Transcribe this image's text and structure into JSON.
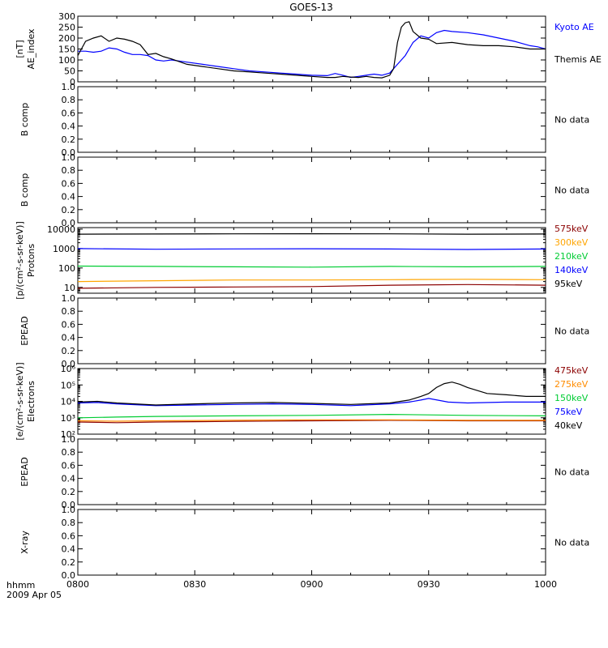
{
  "title": "GOES-13",
  "time_axis": {
    "ticks": [
      "0800",
      "0830",
      "0900",
      "0930",
      "1000"
    ],
    "left_label": "hhmm",
    "date_label": "2009 Apr 05",
    "range_minutes": [
      0,
      120
    ]
  },
  "colors": {
    "axes": "#000000",
    "kyoto": "#0000ff",
    "themis": "#000000",
    "ch_575": "#8b0000",
    "ch_300": "#ffa500",
    "ch_210": "#00cc33",
    "ch_140": "#0000ff",
    "ch_95": "#000000",
    "ch_475": "#8b0000",
    "ch_275": "#ff8c00",
    "ch_150": "#00cc33",
    "ch_75": "#0000ff",
    "ch_40": "#000000"
  },
  "chart_data": [
    {
      "type": "line",
      "panel": "ae",
      "ylabel_lines": [
        "AE_index",
        "[nT]"
      ],
      "ylim": [
        0,
        300
      ],
      "yticks": [
        0,
        50,
        100,
        150,
        200,
        250,
        300
      ],
      "series": [
        {
          "name": "Kyoto AE",
          "color_key": "kyoto",
          "x": [
            0,
            2,
            4,
            6,
            8,
            10,
            12,
            14,
            16,
            18,
            20,
            22,
            24,
            28,
            32,
            36,
            40,
            44,
            48,
            52,
            56,
            60,
            64,
            66,
            68,
            70,
            72,
            74,
            76,
            78,
            80,
            82,
            84,
            86,
            88,
            90,
            92,
            94,
            96,
            100,
            104,
            108,
            112,
            116,
            118,
            120
          ],
          "values": [
            140,
            140,
            135,
            140,
            155,
            150,
            135,
            125,
            125,
            120,
            100,
            95,
            100,
            90,
            80,
            70,
            60,
            50,
            45,
            40,
            35,
            30,
            28,
            38,
            30,
            20,
            25,
            30,
            35,
            30,
            40,
            80,
            120,
            180,
            210,
            200,
            225,
            235,
            230,
            225,
            215,
            200,
            185,
            165,
            160,
            150
          ]
        },
        {
          "name": "Themis AE",
          "color_key": "themis",
          "x": [
            0,
            2,
            4,
            6,
            8,
            10,
            12,
            14,
            16,
            18,
            20,
            22,
            24,
            28,
            32,
            36,
            40,
            44,
            48,
            52,
            56,
            60,
            64,
            66,
            68,
            70,
            72,
            74,
            76,
            78,
            80,
            81,
            82,
            83,
            84,
            85,
            86,
            88,
            90,
            92,
            96,
            100,
            104,
            108,
            112,
            116,
            120
          ],
          "values": [
            120,
            185,
            200,
            210,
            185,
            200,
            195,
            185,
            170,
            125,
            130,
            115,
            105,
            80,
            70,
            60,
            50,
            45,
            40,
            35,
            30,
            25,
            20,
            20,
            25,
            22,
            20,
            25,
            20,
            18,
            30,
            60,
            180,
            250,
            270,
            275,
            230,
            200,
            195,
            175,
            180,
            170,
            165,
            165,
            160,
            150,
            150
          ]
        }
      ]
    },
    {
      "type": "line",
      "panel": "b1",
      "ylabel_lines": [
        "B comp"
      ],
      "ylim": [
        0,
        1
      ],
      "yticks": [
        0,
        0.2,
        0.4,
        0.6,
        0.8,
        1.0
      ],
      "ytick_labels": [
        "0.0",
        "0.2",
        "0.4",
        "0.6",
        "0.8",
        "1.0"
      ],
      "note": "No data",
      "series": []
    },
    {
      "type": "line",
      "panel": "b2",
      "ylabel_lines": [
        "B comp"
      ],
      "ylim": [
        0,
        1
      ],
      "yticks": [
        0,
        0.2,
        0.4,
        0.6,
        0.8,
        1.0
      ],
      "ytick_labels": [
        "0.0",
        "0.2",
        "0.4",
        "0.6",
        "0.8",
        "1.0"
      ],
      "note": "No data",
      "series": []
    },
    {
      "type": "line",
      "panel": "protons",
      "ylabel_lines": [
        "Protons",
        "[p/(cm²-s-sr-keV)]"
      ],
      "log": true,
      "ylim": [
        5,
        12000
      ],
      "yticks": [
        10,
        100,
        1000,
        10000
      ],
      "ytick_labels": [
        "10",
        "100",
        "1000",
        "10000"
      ],
      "series": [
        {
          "name": "575keV",
          "color_key": "ch_575",
          "x": [
            0,
            20,
            40,
            60,
            80,
            100,
            120
          ],
          "values": [
            9,
            10,
            10.5,
            11,
            13,
            14,
            13
          ]
        },
        {
          "name": "300keV",
          "color_key": "ch_300",
          "x": [
            0,
            20,
            40,
            60,
            80,
            100,
            120
          ],
          "values": [
            20,
            22,
            24,
            24,
            25,
            26,
            25
          ]
        },
        {
          "name": "210keV",
          "color_key": "ch_210",
          "x": [
            0,
            20,
            40,
            60,
            80,
            100,
            120
          ],
          "values": [
            125,
            120,
            115,
            110,
            120,
            115,
            120
          ]
        },
        {
          "name": "140keV",
          "color_key": "ch_140",
          "x": [
            0,
            20,
            40,
            60,
            80,
            100,
            120
          ],
          "values": [
            1000,
            920,
            960,
            980,
            950,
            900,
            950
          ]
        },
        {
          "name": "95keV",
          "color_key": "ch_95",
          "x": [
            0,
            20,
            40,
            60,
            80,
            100,
            120
          ],
          "values": [
            5500,
            5600,
            5700,
            5800,
            5700,
            5500,
            5600
          ]
        }
      ]
    },
    {
      "type": "line",
      "panel": "epead1",
      "ylabel_lines": [
        "EPEAD"
      ],
      "ylim": [
        0,
        1
      ],
      "yticks": [
        0,
        0.2,
        0.4,
        0.6,
        0.8,
        1.0
      ],
      "ytick_labels": [
        "0.0",
        "0.2",
        "0.4",
        "0.6",
        "0.8",
        "1.0"
      ],
      "note": "No data",
      "series": []
    },
    {
      "type": "line",
      "panel": "electrons",
      "ylabel_lines": [
        "Electrons",
        "[e/(cm²-s-sr-keV)]"
      ],
      "log": true,
      "ylim": [
        100,
        1000000
      ],
      "yticks": [
        100,
        1000,
        10000,
        100000,
        1000000
      ],
      "ytick_labels": [
        "10²",
        "10³",
        "10⁴",
        "10⁵",
        "10⁶"
      ],
      "series": [
        {
          "name": "475keV",
          "color_key": "ch_475",
          "x": [
            0,
            10,
            20,
            40,
            60,
            80,
            100,
            120
          ],
          "values": [
            550,
            500,
            550,
            600,
            650,
            700,
            650,
            650
          ]
        },
        {
          "name": "275keV",
          "color_key": "ch_275",
          "x": [
            0,
            10,
            20,
            40,
            60,
            80,
            100,
            120
          ],
          "values": [
            650,
            620,
            650,
            700,
            750,
            750,
            700,
            700
          ]
        },
        {
          "name": "150keV",
          "color_key": "ch_150",
          "x": [
            0,
            10,
            20,
            40,
            60,
            80,
            100,
            120
          ],
          "values": [
            1000,
            1100,
            1200,
            1300,
            1400,
            1600,
            1400,
            1300
          ]
        },
        {
          "name": "75keV",
          "color_key": "ch_75",
          "x": [
            0,
            5,
            10,
            20,
            30,
            40,
            50,
            60,
            70,
            80,
            85,
            88,
            90,
            95,
            100,
            110,
            120
          ],
          "values": [
            8000,
            8500,
            7000,
            5500,
            6000,
            6500,
            7000,
            6500,
            5500,
            7000,
            9000,
            12000,
            15000,
            9000,
            8000,
            9000,
            9000
          ]
        },
        {
          "name": "40keV",
          "color_key": "ch_40",
          "x": [
            0,
            5,
            10,
            20,
            30,
            40,
            50,
            60,
            70,
            80,
            85,
            88,
            90,
            92,
            94,
            96,
            98,
            100,
            105,
            110,
            115,
            120
          ],
          "values": [
            9000,
            10000,
            8000,
            6000,
            7000,
            8000,
            8500,
            7500,
            6500,
            8000,
            12000,
            20000,
            30000,
            70000,
            120000,
            150000,
            110000,
            70000,
            30000,
            25000,
            20000,
            20000
          ]
        }
      ]
    },
    {
      "type": "line",
      "panel": "epead2",
      "ylabel_lines": [
        "EPEAD"
      ],
      "ylim": [
        0,
        1
      ],
      "yticks": [
        0,
        0.2,
        0.4,
        0.6,
        0.8,
        1.0
      ],
      "ytick_labels": [
        "0.0",
        "0.2",
        "0.4",
        "0.6",
        "0.8",
        "1.0"
      ],
      "note": "No data",
      "series": []
    },
    {
      "type": "line",
      "panel": "xray",
      "ylabel_lines": [
        "X-ray"
      ],
      "ylim": [
        0,
        1
      ],
      "yticks": [
        0,
        0.2,
        0.4,
        0.6,
        0.8,
        1.0
      ],
      "ytick_labels": [
        "0.0",
        "0.2",
        "0.4",
        "0.6",
        "0.8",
        "1.0"
      ],
      "note": "No data",
      "series": []
    }
  ]
}
